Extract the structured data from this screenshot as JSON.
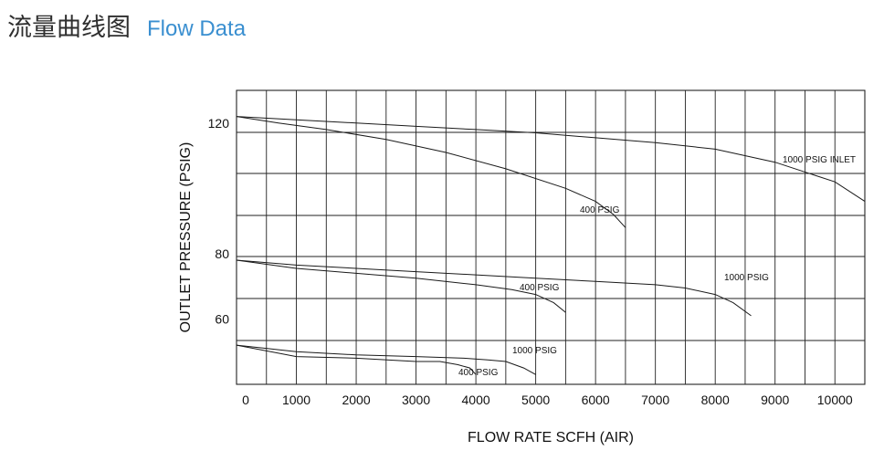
{
  "header": {
    "title_cn": "流量曲线图",
    "title_en": "Flow Data"
  },
  "colors": {
    "title_en": "#3a8fd0",
    "title_cn": "#2f2f2f",
    "line": "#1a1a1a"
  },
  "chart_data": {
    "type": "line",
    "title": "",
    "xlabel": "FLOW RATE SCFH (AIR)",
    "ylabel": "OUTLET PRESSURE (PSIG)",
    "xlim": [
      0,
      10500
    ],
    "ylim": [
      40,
      130
    ],
    "x_ticks": [
      0,
      1000,
      2000,
      3000,
      4000,
      5000,
      6000,
      7000,
      8000,
      9000,
      10000
    ],
    "x_tick_labels": [
      "0",
      "1000",
      "2000",
      "3000",
      "4000",
      "5000",
      "6000",
      "7000",
      "8000",
      "9000",
      "10000"
    ],
    "y_ticks": [
      60,
      80,
      120
    ],
    "y_tick_labels": [
      "60",
      "80",
      "120"
    ],
    "grid": true,
    "series": [
      {
        "name": "1000 PSIG INLET",
        "label": "1000 PSIG INLET",
        "x": [
          0,
          1000,
          2000,
          3000,
          4000,
          5000,
          6000,
          7000,
          8000,
          9000,
          10000,
          10500
        ],
        "y": [
          122,
          121,
          120,
          119,
          118,
          117,
          115.5,
          114,
          112,
          108,
          102,
          96
        ]
      },
      {
        "name": "400 PSIG",
        "label": "400 PSIG",
        "x": [
          0,
          700,
          1500,
          2500,
          3500,
          4500,
          5500,
          6000,
          6300,
          6500
        ],
        "y": [
          122,
          120,
          118,
          115,
          111,
          106,
          100,
          96,
          92,
          88
        ]
      },
      {
        "name": "1000 PSIG",
        "label": "1000 PSIG",
        "x": [
          0,
          1000,
          2000,
          3000,
          4000,
          5000,
          6000,
          7000,
          7500,
          8000,
          8300,
          8600
        ],
        "y": [
          78,
          76.5,
          75.5,
          74.5,
          73.5,
          72.5,
          71.5,
          70.5,
          69.5,
          67.5,
          65,
          61
        ]
      },
      {
        "name": "400 PSIG",
        "label": "400 PSIG",
        "x": [
          0,
          1000,
          2000,
          3000,
          4000,
          4600,
          5000,
          5300,
          5500
        ],
        "y": [
          78,
          75.5,
          74,
          72.5,
          70.5,
          69,
          67.5,
          65,
          62
        ]
      },
      {
        "name": "1000 PSIG",
        "label": "1000 PSIG",
        "x": [
          0,
          1000,
          2000,
          3000,
          3800,
          4200,
          4500,
          4800,
          5000
        ],
        "y": [
          52,
          50,
          49,
          48.5,
          48,
          47.5,
          47,
          45,
          43
        ]
      },
      {
        "name": "400 PSIG",
        "label": "400 PSIG",
        "x": [
          0,
          1000,
          2000,
          3000,
          3400,
          3700,
          3900,
          4000
        ],
        "y": [
          52,
          48.5,
          48,
          47,
          47,
          46,
          45,
          43
        ]
      }
    ]
  }
}
